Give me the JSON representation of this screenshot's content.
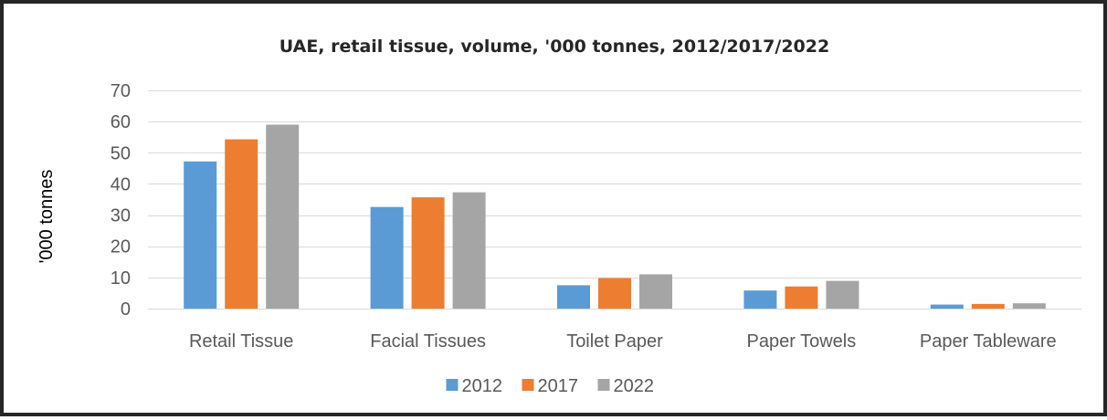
{
  "chart_data": {
    "type": "bar",
    "title": "UAE, retail tissue, volume, '000 tonnes, 2012/2017/2022",
    "ylabel": "'000 tonnes",
    "xlabel": "",
    "ylim": [
      0,
      70
    ],
    "yticks": [
      0,
      10,
      20,
      30,
      40,
      50,
      60,
      70
    ],
    "grid": true,
    "legend_position": "bottom",
    "categories": [
      "Retail Tissue",
      "Facial Tissues",
      "Toilet Paper",
      "Paper Towels",
      "Paper Tableware"
    ],
    "series": [
      {
        "name": "2012",
        "color": "#5b9bd5",
        "values": [
          47.2,
          32.6,
          7.5,
          5.8,
          1.3
        ]
      },
      {
        "name": "2017",
        "color": "#ed7d31",
        "values": [
          54.3,
          35.7,
          9.8,
          7.1,
          1.5
        ]
      },
      {
        "name": "2022",
        "color": "#a5a5a5",
        "values": [
          59.0,
          37.3,
          11.0,
          8.9,
          1.7
        ]
      }
    ]
  }
}
